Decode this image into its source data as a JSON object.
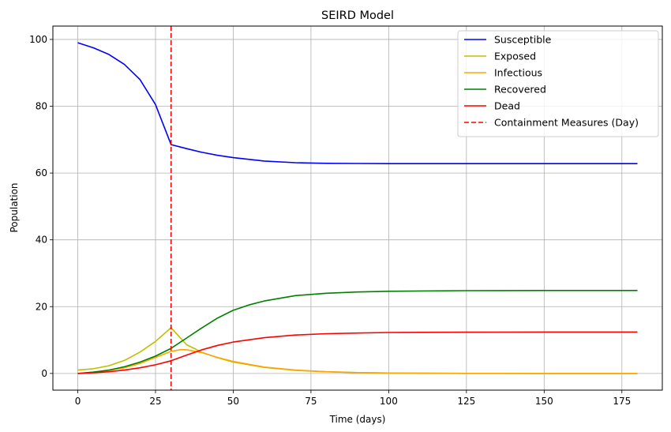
{
  "chart_data": {
    "type": "line",
    "title": "SEIRD Model",
    "xlabel": "Time (days)",
    "ylabel": "Population",
    "xlim": [
      -8,
      188
    ],
    "ylim": [
      -5,
      104
    ],
    "xticks": [
      0,
      25,
      50,
      75,
      100,
      125,
      150,
      175
    ],
    "yticks": [
      0,
      20,
      40,
      60,
      80,
      100
    ],
    "grid": true,
    "legend_position": "top-right",
    "series": [
      {
        "name": "Susceptible",
        "color": "#0000ff",
        "style": "solid",
        "x": [
          0,
          5,
          10,
          15,
          20,
          25,
          30,
          35,
          40,
          45,
          50,
          60,
          70,
          80,
          90,
          100,
          125,
          150,
          180
        ],
        "y": [
          99,
          97.5,
          95.5,
          92.5,
          88,
          80.5,
          68.5,
          67.3,
          66.2,
          65.3,
          64.6,
          63.6,
          63.1,
          62.9,
          62.85,
          62.8,
          62.8,
          62.8,
          62.8
        ]
      },
      {
        "name": "Exposed",
        "color": "#bfbf00",
        "style": "solid",
        "x": [
          0,
          5,
          10,
          15,
          20,
          25,
          30,
          35,
          40,
          45,
          50,
          60,
          70,
          80,
          90,
          100,
          125,
          150,
          180
        ],
        "y": [
          1,
          1.4,
          2.3,
          3.9,
          6.4,
          9.6,
          13.7,
          8.6,
          6.3,
          4.7,
          3.4,
          1.8,
          0.9,
          0.5,
          0.25,
          0.13,
          0.02,
          0,
          0
        ]
      },
      {
        "name": "Infectious",
        "color": "#ffa500",
        "style": "solid",
        "x": [
          0,
          5,
          10,
          15,
          20,
          25,
          30,
          33,
          35,
          40,
          45,
          50,
          60,
          70,
          80,
          90,
          100,
          125,
          150,
          180
        ],
        "y": [
          0,
          0.4,
          0.9,
          1.7,
          3,
          4.8,
          6.6,
          7.1,
          7.1,
          6.2,
          4.8,
          3.6,
          1.9,
          1,
          0.5,
          0.25,
          0.12,
          0.02,
          0,
          0
        ]
      },
      {
        "name": "Recovered",
        "color": "#008000",
        "style": "solid",
        "x": [
          0,
          5,
          10,
          15,
          20,
          25,
          30,
          35,
          40,
          45,
          50,
          55,
          60,
          70,
          80,
          90,
          100,
          125,
          150,
          180
        ],
        "y": [
          0,
          0.4,
          1,
          2,
          3.4,
          5.2,
          7.5,
          10.6,
          13.7,
          16.6,
          18.9,
          20.5,
          21.7,
          23.3,
          24,
          24.4,
          24.6,
          24.8,
          24.85,
          24.85
        ]
      },
      {
        "name": "Dead",
        "color": "#ff0000",
        "style": "solid",
        "x": [
          0,
          5,
          10,
          15,
          20,
          25,
          30,
          35,
          40,
          45,
          50,
          60,
          70,
          80,
          90,
          100,
          125,
          150,
          180
        ],
        "y": [
          0,
          0.2,
          0.5,
          1,
          1.7,
          2.6,
          3.8,
          5.5,
          7.1,
          8.4,
          9.4,
          10.7,
          11.5,
          11.9,
          12.1,
          12.25,
          12.35,
          12.4,
          12.4
        ]
      }
    ],
    "vlines": [
      {
        "name": "Containment Measures (Day)",
        "x": 30,
        "color": "#ff0000",
        "style": "dashed"
      }
    ]
  }
}
